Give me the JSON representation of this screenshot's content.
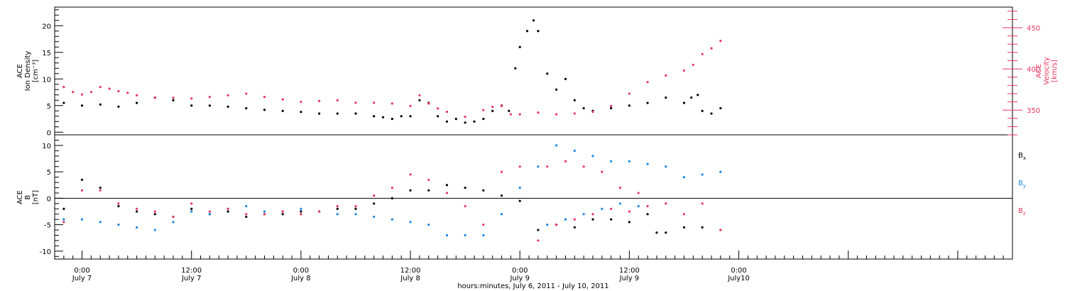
{
  "colors": {
    "black": "#000000",
    "pink": "#e8375f",
    "blue": "#1a86e0"
  },
  "xaxis": {
    "title": "hours:minutes, July  6, 2011 - July 10, 2011",
    "range_hours": [
      -3,
      102
    ],
    "ticks": [
      {
        "hour": 0,
        "time": "0:00",
        "day": "July 7"
      },
      {
        "hour": 12,
        "time": "12:00",
        "day": "July 7"
      },
      {
        "hour": 24,
        "time": "0:00",
        "day": "July 8"
      },
      {
        "hour": 36,
        "time": "12:00",
        "day": "July 8"
      },
      {
        "hour": 48,
        "time": "0:00",
        "day": "July 9"
      },
      {
        "hour": 60,
        "time": "12:00",
        "day": "July 9"
      },
      {
        "hour": 72,
        "time": "0:00",
        "day": "July10"
      }
    ]
  },
  "chart_data": [
    {
      "type": "scatter",
      "panel": "top",
      "left_axis": {
        "label_lines": [
          "ACE",
          "Ion Density"
        ],
        "unit": "[cm⁻³]",
        "range": [
          -0.5,
          23.5
        ],
        "ticks": [
          0,
          5,
          10,
          15,
          20
        ]
      },
      "right_axis": {
        "label_lines": [
          "ACE",
          "Velocity"
        ],
        "unit": "[km/s]",
        "range": [
          320,
          475
        ],
        "ticks": [
          350,
          400,
          450
        ]
      },
      "series": [
        {
          "color": "black",
          "axis": "left",
          "x": [
            -2,
            0,
            2,
            4,
            6,
            8,
            10,
            12,
            14,
            16,
            18,
            20,
            22,
            24,
            26,
            28,
            30,
            32,
            33,
            34,
            35,
            36,
            37,
            38,
            39,
            40,
            41,
            42,
            43,
            44,
            45,
            46,
            46.8,
            47.5,
            48,
            48.8,
            49.5,
            50,
            51,
            52,
            53,
            54,
            55,
            56,
            58,
            60,
            62,
            64,
            66,
            66.8,
            67.5,
            68,
            69,
            70
          ],
          "y": [
            5.5,
            5.0,
            5.2,
            4.8,
            5.5,
            6.5,
            6.0,
            5.0,
            5.0,
            4.8,
            4.5,
            4.2,
            4.0,
            3.8,
            3.5,
            3.5,
            3.5,
            3.0,
            2.8,
            2.5,
            3.0,
            3.0,
            6.0,
            5.5,
            3.0,
            2.0,
            2.5,
            1.8,
            2.0,
            2.5,
            4.0,
            5.0,
            4.0,
            12.0,
            16.0,
            19.0,
            21.0,
            19.0,
            11.0,
            8.0,
            10.0,
            6.0,
            4.5,
            4.0,
            4.5,
            5.0,
            5.5,
            6.5,
            5.5,
            6.5,
            7.0,
            4.0,
            3.5,
            4.5
          ]
        },
        {
          "color": "pink",
          "axis": "right",
          "x": [
            -2,
            -1,
            0,
            1,
            2,
            3,
            4,
            5,
            6,
            8,
            10,
            12,
            14,
            16,
            18,
            20,
            22,
            24,
            26,
            28,
            30,
            32,
            34,
            36,
            37,
            38,
            39,
            40,
            42,
            44,
            45,
            46,
            47,
            48,
            50,
            52,
            54,
            56,
            58,
            60,
            62,
            64,
            66,
            67,
            68,
            69,
            70
          ],
          "y": [
            378,
            372,
            369,
            372,
            378,
            376,
            373,
            371,
            368,
            365,
            365,
            364,
            366,
            368,
            370,
            366,
            363,
            360,
            361,
            362,
            359,
            359,
            358,
            355,
            368,
            358,
            352,
            348,
            342,
            350,
            354,
            355,
            345,
            345,
            347,
            345,
            346,
            348,
            355,
            370,
            384,
            392,
            398,
            405,
            418,
            425,
            434
          ]
        }
      ]
    },
    {
      "type": "scatter",
      "panel": "bottom",
      "left_axis": {
        "label_lines": [
          "ACE",
          "B"
        ],
        "unit": "[nT]",
        "range": [
          -11.5,
          12
        ],
        "ticks": [
          -10,
          -5,
          0,
          5,
          10
        ]
      },
      "legend": [
        "B_x",
        "B_y",
        "B_z"
      ],
      "series": [
        {
          "name": "B_x",
          "color": "black",
          "x": [
            -2,
            0,
            2,
            4,
            6,
            8,
            10,
            12,
            14,
            16,
            18,
            20,
            22,
            24,
            26,
            28,
            30,
            32,
            34,
            36,
            38,
            40,
            42,
            44,
            46,
            48,
            50,
            52,
            54,
            56,
            58,
            60,
            62,
            63,
            64,
            66,
            68,
            70
          ],
          "y": [
            -2,
            3.5,
            2.0,
            -1.5,
            -2.5,
            -3.0,
            -3.5,
            -2.0,
            -3.0,
            -2.5,
            -3.5,
            -3.0,
            -3.0,
            -2.5,
            -2.5,
            -2.0,
            -2.0,
            -1.0,
            0.0,
            1.5,
            1.5,
            2.5,
            2.0,
            1.5,
            0.5,
            -0.5,
            -6.0,
            -5.0,
            -5.5,
            -4.0,
            -4.0,
            -4.5,
            -3.0,
            -6.5,
            -6.5,
            -5.5,
            -5.5,
            -6.0
          ]
        },
        {
          "name": "B_y",
          "color": "blue",
          "x": [
            -2,
            0,
            2,
            4,
            6,
            8,
            10,
            12,
            14,
            16,
            18,
            20,
            22,
            24,
            26,
            28,
            30,
            32,
            34,
            36,
            38,
            40,
            42,
            44,
            46,
            48,
            50,
            51,
            52,
            53,
            54,
            55,
            56,
            57,
            58,
            59,
            60,
            61,
            62,
            64,
            66,
            68,
            70
          ],
          "y": [
            -4,
            -4.0,
            -4.5,
            -5.0,
            -5.5,
            -6.0,
            -4.5,
            -2.5,
            -3.0,
            -2.0,
            -1.5,
            -2.5,
            -2.5,
            -2.0,
            -2.5,
            -3.0,
            -3.0,
            -3.5,
            -4.0,
            -4.5,
            -5.0,
            -7.0,
            -7.0,
            -7.0,
            -3.0,
            2.0,
            6.0,
            -5.0,
            10.0,
            -4.0,
            9.0,
            -3.0,
            8.0,
            -2.0,
            7.0,
            -1.0,
            7.0,
            -1.5,
            6.5,
            6.0,
            4.0,
            4.5,
            5.0
          ]
        },
        {
          "name": "B_z",
          "color": "pink",
          "x": [
            -2,
            0,
            2,
            4,
            6,
            8,
            10,
            12,
            14,
            16,
            18,
            20,
            22,
            24,
            26,
            28,
            30,
            32,
            34,
            36,
            38,
            40,
            42,
            44,
            46,
            48,
            50,
            51,
            52,
            53,
            54,
            55,
            56,
            57,
            58,
            59,
            60,
            61,
            62,
            64,
            66,
            68,
            70
          ],
          "y": [
            -4.5,
            1.5,
            1.5,
            -1.0,
            -2.0,
            -2.5,
            -3.5,
            -1.0,
            -2.5,
            -2.0,
            -3.0,
            -3.0,
            -2.5,
            -3.0,
            -2.5,
            -1.5,
            -1.5,
            0.5,
            2.0,
            4.5,
            3.5,
            1.0,
            -1.5,
            -5.0,
            5.0,
            6.0,
            -8.0,
            6.0,
            -5.0,
            7.0,
            -4.0,
            6.0,
            -3.0,
            5.0,
            -2.0,
            2.0,
            -2.5,
            1.0,
            -1.5,
            -1.0,
            -3.0,
            -1.0,
            -6.0
          ]
        }
      ]
    }
  ]
}
